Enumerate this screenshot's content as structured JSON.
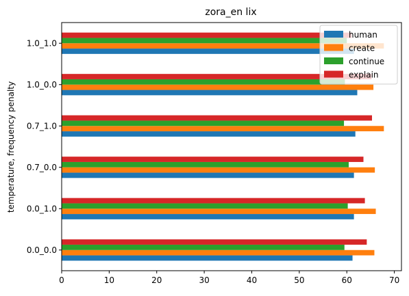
{
  "chart_data": {
    "type": "bar",
    "orientation": "horizontal",
    "title": "zora_en lix",
    "xlabel": "",
    "ylabel": "temperature, frequency penalty",
    "xlim": [
      0,
      71.5
    ],
    "xticks": [
      "0",
      "10",
      "20",
      "30",
      "40",
      "50",
      "60",
      "70"
    ],
    "grid": false,
    "legend_position": "top-right",
    "categories": [
      "0.0_0.0",
      "0.0_1.0",
      "0.7_0.0",
      "0.7_1.0",
      "1.0_0.0",
      "1.0_1.0"
    ],
    "series": [
      {
        "name": "human",
        "color": "#1f77b4",
        "values": [
          61.2,
          61.5,
          61.5,
          61.8,
          62.2,
          61.5
        ]
      },
      {
        "name": "create",
        "color": "#ff7f0e",
        "values": [
          65.8,
          66.1,
          65.9,
          67.8,
          65.6,
          67.8
        ]
      },
      {
        "name": "continue",
        "color": "#2ca02c",
        "values": [
          59.5,
          60.2,
          60.4,
          59.4,
          59.6,
          60.0
        ]
      },
      {
        "name": "explain",
        "color": "#d62728",
        "values": [
          64.2,
          63.8,
          63.5,
          65.3,
          65.2,
          61.0
        ]
      }
    ]
  }
}
